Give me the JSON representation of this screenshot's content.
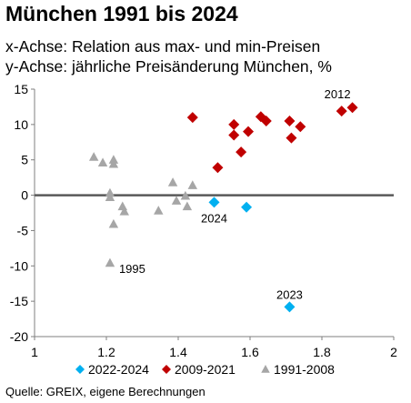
{
  "chart_data": {
    "type": "scatter",
    "title": "München 1991 bis 2024",
    "subtitle_lines": [
      "x-Achse: Relation aus max- und min-Preisen",
      "y-Achse: jährliche Preisänderung München, %"
    ],
    "source": "Quelle: GREIX, eigene Berechnungen",
    "xlim": [
      1,
      2
    ],
    "ylim": [
      -20,
      15
    ],
    "xticks": [
      1,
      1.2,
      1.4,
      1.6,
      1.8,
      2
    ],
    "xtick_labels": [
      "1",
      "1.2",
      "1.4",
      "1.6",
      "1.8",
      "2"
    ],
    "yticks": [
      15,
      10,
      5,
      0,
      -5,
      -10,
      -15,
      -20
    ],
    "ytick_labels": [
      "15",
      "10",
      "5",
      "0",
      "-5",
      "-10",
      "-15",
      "-20"
    ],
    "legend_position": "bottom",
    "series": [
      {
        "name": "2022-2024",
        "color": "#00B0F0",
        "marker": "diamond",
        "points": [
          {
            "x": 1.5,
            "y": -1.0
          },
          {
            "x": 1.59,
            "y": -1.7
          },
          {
            "x": 1.71,
            "y": -15.8
          }
        ]
      },
      {
        "name": "2009-2021",
        "color": "#C00000",
        "marker": "diamond",
        "points": [
          {
            "x": 1.44,
            "y": 11.0
          },
          {
            "x": 1.51,
            "y": 3.9
          },
          {
            "x": 1.555,
            "y": 10.0
          },
          {
            "x": 1.555,
            "y": 8.5
          },
          {
            "x": 1.575,
            "y": 6.1
          },
          {
            "x": 1.595,
            "y": 9.0
          },
          {
            "x": 1.63,
            "y": 11.1
          },
          {
            "x": 1.645,
            "y": 10.5
          },
          {
            "x": 1.71,
            "y": 10.5
          },
          {
            "x": 1.715,
            "y": 8.1
          },
          {
            "x": 1.74,
            "y": 9.7
          },
          {
            "x": 1.855,
            "y": 11.9
          },
          {
            "x": 1.885,
            "y": 12.4
          }
        ]
      },
      {
        "name": "1991-2008",
        "color": "#A6A6A6",
        "marker": "triangle",
        "points": [
          {
            "x": 1.165,
            "y": 5.4
          },
          {
            "x": 1.19,
            "y": 4.6
          },
          {
            "x": 1.21,
            "y": 0.3
          },
          {
            "x": 1.21,
            "y": -0.3
          },
          {
            "x": 1.22,
            "y": 5.0
          },
          {
            "x": 1.22,
            "y": 4.4
          },
          {
            "x": 1.22,
            "y": -4.1
          },
          {
            "x": 1.21,
            "y": -9.6
          },
          {
            "x": 1.245,
            "y": -1.6
          },
          {
            "x": 1.25,
            "y": -2.3
          },
          {
            "x": 1.345,
            "y": -2.2
          },
          {
            "x": 1.385,
            "y": 1.8
          },
          {
            "x": 1.395,
            "y": -0.8
          },
          {
            "x": 1.42,
            "y": -0.1
          },
          {
            "x": 1.425,
            "y": -1.6
          },
          {
            "x": 1.44,
            "y": 1.4
          }
        ]
      }
    ],
    "annotations": [
      {
        "text": "2012",
        "x": 1.885,
        "y": 12.4,
        "anchor": "above-left"
      },
      {
        "text": "2024",
        "x": 1.5,
        "y": -1.0,
        "anchor": "below"
      },
      {
        "text": "2023",
        "x": 1.71,
        "y": -15.8,
        "anchor": "above"
      },
      {
        "text": "1995",
        "x": 1.21,
        "y": -9.6,
        "anchor": "right"
      }
    ]
  }
}
